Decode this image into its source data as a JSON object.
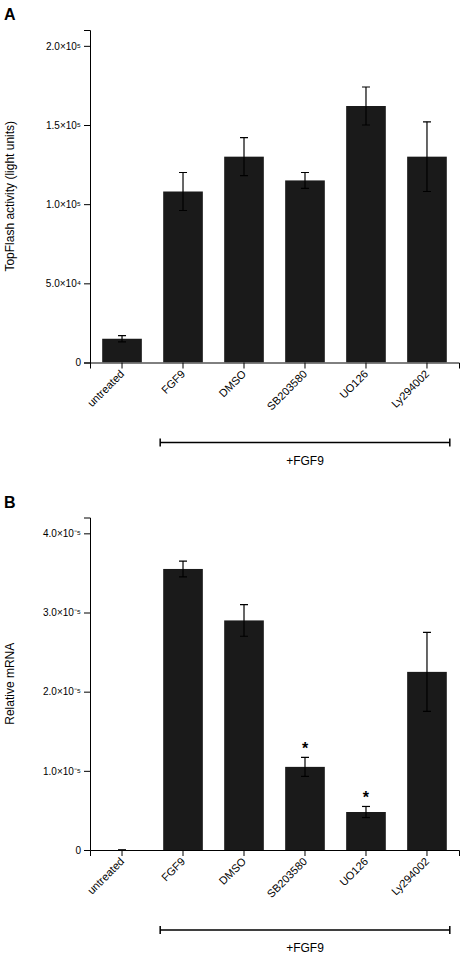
{
  "chart_data": [
    {
      "type": "bar",
      "title": "A",
      "categories": [
        "untreated",
        "FGF9",
        "DMSO",
        "SB203580",
        "UO126",
        "Ly294002"
      ],
      "values": [
        15000,
        108000,
        130000,
        115000,
        162000,
        130000
      ],
      "errors": [
        2000,
        12000,
        12000,
        5000,
        12000,
        22000
      ],
      "ylabel": "TopFlash activity (light units)",
      "color": "#1a1a1a",
      "ylim": [
        0,
        210000
      ],
      "yticks": [
        0,
        {
          "value": 50000,
          "label": "5.0×10⁴"
        },
        {
          "value": 100000,
          "label": "1.0×10⁵"
        },
        {
          "value": 150000,
          "label": "1.5×10⁵"
        },
        {
          "value": 200000,
          "label": "2.0×10⁵"
        }
      ],
      "annotations": [
        {
          "text": "+FGF9",
          "from": "FGF9",
          "to": "Ly294002"
        }
      ]
    },
    {
      "type": "bar",
      "title": "B",
      "categories": [
        "untreated",
        "FGF9",
        "DMSO",
        "SB203580",
        "UO126",
        "Ly294002"
      ],
      "values": [
        0,
        3.55e-05,
        2.9e-05,
        1.05e-05,
        4.8e-06,
        2.25e-05
      ],
      "errors": [
        0,
        1e-06,
        2e-06,
        1.2e-06,
        7e-07,
        5e-06
      ],
      "ylabel": "Relative mRNA",
      "color": "#1a1a1a",
      "ylim": [
        0,
        4.2e-05
      ],
      "yticks": [
        0,
        {
          "value": 1e-05,
          "label": "1.0×10⁻⁵"
        },
        {
          "value": 2e-05,
          "label": "2.0×10⁻⁵"
        },
        {
          "value": 3e-05,
          "label": "3.0×10⁻⁵"
        },
        {
          "value": 4e-05,
          "label": "4.0×10⁻⁵"
        }
      ],
      "annotations": [
        {
          "text": "+FGF9",
          "from": "FGF9",
          "to": "Ly294002"
        },
        {
          "text": "*",
          "category": "SB203580"
        },
        {
          "text": "*",
          "category": "UO126"
        }
      ]
    }
  ]
}
